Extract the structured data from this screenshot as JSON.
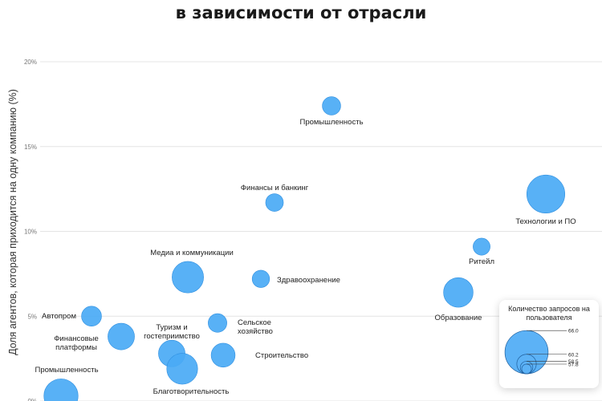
{
  "title": "в зависимости от отрасли",
  "chart_data": {
    "type": "scatter",
    "title": "в зависимости от отрасли",
    "ylabel": "Доля агентов, которая приходится на одну компанию (%)",
    "xlabel": "",
    "ylim": [
      0,
      20
    ],
    "yticks": [
      "0%",
      "5%",
      "10%",
      "15%",
      "20%"
    ],
    "grid": true,
    "points": [
      {
        "label": "Промышленность",
        "y": 17.4,
        "size": 58.5
      },
      {
        "label": "Финансы и банкинг",
        "y": 11.7,
        "size": 58.3
      },
      {
        "label": "Технологии и ПО",
        "y": 12.2,
        "size": 64.5
      },
      {
        "label": "Ритейл",
        "y": 9.1,
        "size": 58.1
      },
      {
        "label": "Медиа и коммуникации",
        "y": 7.3,
        "size": 62.5
      },
      {
        "label": "Здравоохранение",
        "y": 7.2,
        "size": 58.2
      },
      {
        "label": "Образование",
        "y": 6.4,
        "size": 61.9
      },
      {
        "label": "Автопром",
        "y": 5.0,
        "size": 59.0
      },
      {
        "label": "Финансовые платформы",
        "y": 3.8,
        "size": 61.0
      },
      {
        "label": "Сельское хозяйство",
        "y": 4.6,
        "size": 58.6
      },
      {
        "label": "Туризм и гостеприимство",
        "y": 2.8,
        "size": 61.0
      },
      {
        "label": "Строительство",
        "y": 2.7,
        "size": 60.2
      },
      {
        "label": "Благотворительность",
        "y": 1.9,
        "size": 62.3
      },
      {
        "label": "Промышленность",
        "y": 0.3,
        "size": 63.3
      }
    ],
    "legend": {
      "title": "Количество запросов на пользователя",
      "placement": "bottom-right",
      "values": [
        66.0,
        60.2,
        58.5,
        57.8
      ],
      "value_labels": [
        "66.0",
        "60.2",
        "58.5",
        "57.8"
      ]
    },
    "colors": {
      "bubble": "#4aaaf5",
      "bubble_edge": "#2f8fe0",
      "grid": "#e4e4e4"
    }
  }
}
